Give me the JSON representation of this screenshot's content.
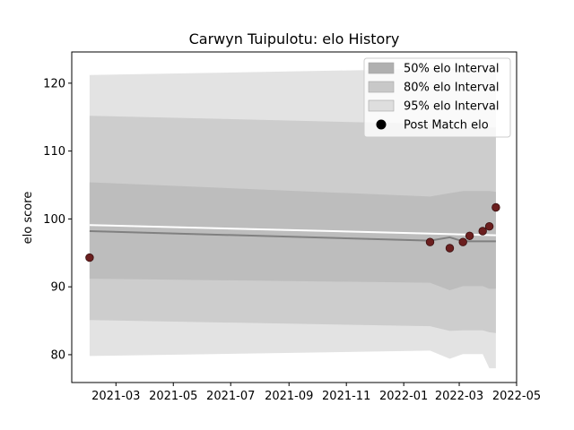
{
  "chart_data": {
    "type": "line",
    "title": "Carwyn Tuipulotu: elo History",
    "xlabel": "",
    "ylabel": "elo score",
    "xlim": [
      "2021-01-13",
      "2022-05-01"
    ],
    "ylim": [
      75.9,
      124.6
    ],
    "x_ticks": [
      "2021-03",
      "2021-05",
      "2021-07",
      "2021-09",
      "2021-11",
      "2022-01",
      "2022-03",
      "2022-05"
    ],
    "y_ticks": [
      80,
      90,
      100,
      110,
      120
    ],
    "grid": false,
    "legend_position": "top-right",
    "series": [
      {
        "name": "95% elo Interval",
        "kind": "band",
        "color": "#e3e3e3",
        "x": [
          "2021-02-01",
          "2022-01-29",
          "2022-02-19",
          "2022-03-05",
          "2022-03-12",
          "2022-03-26",
          "2022-04-02",
          "2022-04-09"
        ],
        "lower": [
          79.8,
          80.6,
          79.4,
          80.1,
          80.1,
          80.1,
          78.0,
          78.0
        ],
        "upper": [
          121.2,
          122.1,
          122.1,
          122.1,
          122.1,
          122.1,
          122.1,
          122.1
        ]
      },
      {
        "name": "80% elo Interval",
        "kind": "band",
        "color": "#cdcdcd",
        "x": [
          "2021-02-01",
          "2022-01-29",
          "2022-02-19",
          "2022-03-05",
          "2022-03-12",
          "2022-03-26",
          "2022-04-02",
          "2022-04-09"
        ],
        "lower": [
          85.1,
          84.2,
          83.5,
          83.6,
          83.6,
          83.6,
          83.3,
          83.2
        ],
        "upper": [
          115.2,
          114.0,
          113.5,
          113.5,
          113.5,
          113.5,
          113.5,
          113.5
        ]
      },
      {
        "name": "50% elo Interval",
        "kind": "band",
        "color": "#bdbdbd",
        "x": [
          "2021-02-01",
          "2022-01-29",
          "2022-02-19",
          "2022-03-05",
          "2022-03-12",
          "2022-03-26",
          "2022-04-02",
          "2022-04-09"
        ],
        "lower": [
          91.2,
          90.6,
          89.5,
          90.1,
          90.1,
          90.1,
          89.7,
          89.7
        ],
        "upper": [
          105.4,
          103.3,
          103.8,
          104.1,
          104.1,
          104.1,
          104.1,
          104.0
        ]
      },
      {
        "kind": "line",
        "color": "#808080",
        "x": [
          "2021-02-01",
          "2022-01-29",
          "2022-02-19",
          "2022-03-05",
          "2022-03-26",
          "2022-04-09"
        ],
        "y": [
          98.2,
          96.8,
          97.3,
          96.7,
          96.7,
          96.7
        ]
      },
      {
        "kind": "line",
        "color": "#ffffff",
        "x": [
          "2021-02-01",
          "2022-04-09"
        ],
        "y": [
          99.1,
          97.6
        ]
      },
      {
        "name": "Post Match elo",
        "kind": "scatter",
        "color": "#6b1f1f",
        "x": [
          "2021-02-01",
          "2022-01-29",
          "2022-02-19",
          "2022-03-05",
          "2022-03-12",
          "2022-03-26",
          "2022-04-02",
          "2022-04-09"
        ],
        "y": [
          94.3,
          96.6,
          95.7,
          96.6,
          97.5,
          98.2,
          98.9,
          101.7
        ]
      }
    ],
    "legend": [
      {
        "label": "50% elo Interval",
        "swatch": "#b0b0b0"
      },
      {
        "label": "80% elo Interval",
        "swatch": "#c8c8c8"
      },
      {
        "label": "95% elo Interval",
        "swatch": "#dedede"
      },
      {
        "label": "Post Match elo",
        "swatch": "#000000"
      }
    ]
  }
}
